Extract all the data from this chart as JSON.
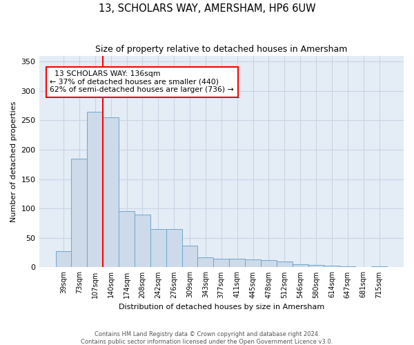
{
  "title": "13, SCHOLARS WAY, AMERSHAM, HP6 6UW",
  "subtitle": "Size of property relative to detached houses in Amersham",
  "xlabel": "Distribution of detached houses by size in Amersham",
  "ylabel": "Number of detached properties",
  "footer_line1": "Contains HM Land Registry data © Crown copyright and database right 2024.",
  "footer_line2": "Contains public sector information licensed under the Open Government Licence v3.0.",
  "annotation_line1": "  13 SCHOLARS WAY: 136sqm  ",
  "annotation_line2": "← 37% of detached houses are smaller (440)",
  "annotation_line3": "62% of semi-detached houses are larger (736) →",
  "bin_labels": [
    "39sqm",
    "73sqm",
    "107sqm",
    "140sqm",
    "174sqm",
    "208sqm",
    "242sqm",
    "276sqm",
    "309sqm",
    "343sqm",
    "377sqm",
    "411sqm",
    "445sqm",
    "478sqm",
    "512sqm",
    "546sqm",
    "580sqm",
    "614sqm",
    "647sqm",
    "681sqm",
    "715sqm"
  ],
  "bar_values": [
    28,
    185,
    265,
    255,
    95,
    90,
    65,
    65,
    37,
    17,
    15,
    14,
    13,
    12,
    10,
    5,
    4,
    3,
    2,
    1,
    2
  ],
  "bar_color": "#ccdaea",
  "bar_edge_color": "#6ea6cc",
  "grid_color": "#c8d4e4",
  "background_color": "#e4ecf6",
  "red_line_x": 2.5,
  "ylim": [
    0,
    360
  ],
  "yticks": [
    0,
    50,
    100,
    150,
    200,
    250,
    300,
    350
  ]
}
